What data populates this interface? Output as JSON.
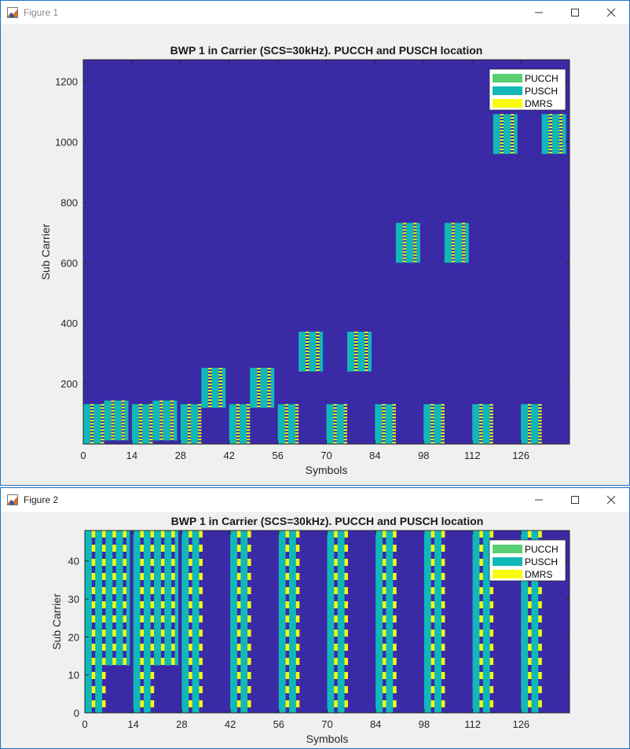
{
  "windows": [
    {
      "title": "Figure 1"
    },
    {
      "title": "Figure 2"
    }
  ],
  "colors": {
    "background": "#3b2aa6",
    "pucch": "#5bcf73",
    "pusch": "#11b8b8",
    "dmrs": "#f9fb0e"
  },
  "icons": [
    "matlab-figure-icon",
    "minimize-icon",
    "maximize-icon",
    "close-icon"
  ],
  "chart_data": [
    {
      "type": "heatmap",
      "title": "BWP 1 in Carrier (SCS=30kHz). PUCCH and PUSCH location",
      "xlabel": "Symbols",
      "ylabel": "Sub Carrier",
      "xlim": [
        0,
        140
      ],
      "ylim": [
        0,
        1272
      ],
      "xticks": [
        0,
        14,
        28,
        42,
        56,
        70,
        84,
        98,
        112,
        126
      ],
      "yticks": [
        200,
        400,
        600,
        800,
        1000,
        1200
      ],
      "legend": [
        "PUCCH",
        "PUSCH",
        "DMRS"
      ],
      "legend_position": "top-right",
      "grid": false,
      "pusch_blocks": [
        {
          "x": [
            0,
            6
          ],
          "y": [
            0,
            132
          ]
        },
        {
          "x": [
            6,
            13
          ],
          "y": [
            12,
            144
          ]
        },
        {
          "x": [
            14,
            20
          ],
          "y": [
            0,
            132
          ]
        },
        {
          "x": [
            20,
            27
          ],
          "y": [
            12,
            144
          ]
        },
        {
          "x": [
            28,
            34
          ],
          "y": [
            0,
            132
          ]
        },
        {
          "x": [
            34,
            41
          ],
          "y": [
            120,
            252
          ]
        },
        {
          "x": [
            42,
            48
          ],
          "y": [
            0,
            132
          ]
        },
        {
          "x": [
            48,
            55
          ],
          "y": [
            120,
            252
          ]
        },
        {
          "x": [
            56,
            62
          ],
          "y": [
            0,
            132
          ]
        },
        {
          "x": [
            62,
            69
          ],
          "y": [
            240,
            372
          ]
        },
        {
          "x": [
            70,
            76
          ],
          "y": [
            0,
            132
          ]
        },
        {
          "x": [
            76,
            83
          ],
          "y": [
            240,
            372
          ]
        },
        {
          "x": [
            84,
            90
          ],
          "y": [
            0,
            132
          ]
        },
        {
          "x": [
            90,
            97
          ],
          "y": [
            600,
            732
          ]
        },
        {
          "x": [
            98,
            104
          ],
          "y": [
            0,
            132
          ]
        },
        {
          "x": [
            104,
            111
          ],
          "y": [
            600,
            732
          ]
        },
        {
          "x": [
            112,
            118
          ],
          "y": [
            0,
            132
          ]
        },
        {
          "x": [
            118,
            125
          ],
          "y": [
            960,
            1092
          ]
        },
        {
          "x": [
            126,
            132
          ],
          "y": [
            0,
            132
          ]
        },
        {
          "x": [
            132,
            139
          ],
          "y": [
            960,
            1092
          ]
        }
      ],
      "dmrs_symbols_offset": [
        2,
        5
      ]
    },
    {
      "type": "heatmap",
      "title": "BWP 1 in Carrier (SCS=30kHz). PUCCH and PUSCH location",
      "xlabel": "Symbols",
      "ylabel": "Sub Carrier",
      "xlim": [
        0,
        140
      ],
      "ylim": [
        0,
        48
      ],
      "xticks": [
        0,
        14,
        28,
        42,
        56,
        70,
        84,
        98,
        112,
        126
      ],
      "yticks": [
        0,
        10,
        20,
        30,
        40
      ],
      "legend": [
        "PUCCH",
        "PUSCH",
        "DMRS"
      ],
      "legend_position": "top-right",
      "grid": false,
      "pusch_blocks": [
        {
          "x": [
            0,
            6
          ],
          "y": [
            0,
            48
          ]
        },
        {
          "x": [
            6,
            13
          ],
          "y": [
            12.5,
            48
          ]
        },
        {
          "x": [
            14,
            20
          ],
          "y": [
            0,
            48
          ]
        },
        {
          "x": [
            20,
            27
          ],
          "y": [
            12.5,
            48
          ]
        },
        {
          "x": [
            28,
            34
          ],
          "y": [
            0,
            48
          ]
        },
        {
          "x": [
            42,
            48
          ],
          "y": [
            0,
            48
          ]
        },
        {
          "x": [
            56,
            62
          ],
          "y": [
            0,
            48
          ]
        },
        {
          "x": [
            70,
            76
          ],
          "y": [
            0,
            48
          ]
        },
        {
          "x": [
            84,
            90
          ],
          "y": [
            0,
            48
          ]
        },
        {
          "x": [
            98,
            104
          ],
          "y": [
            0,
            48
          ]
        },
        {
          "x": [
            112,
            118
          ],
          "y": [
            0,
            48
          ]
        },
        {
          "x": [
            126,
            132
          ],
          "y": [
            0,
            48
          ]
        }
      ],
      "dmrs_symbols_offset": [
        2,
        5
      ]
    }
  ]
}
